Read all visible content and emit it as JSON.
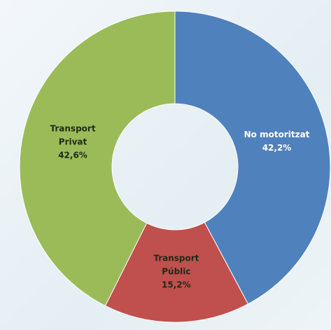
{
  "chart_data": {
    "type": "donut",
    "categories": [
      "No motoritzat",
      "Transport Públic",
      "Transport Privat"
    ],
    "values": [
      42.2,
      15.2,
      42.6
    ],
    "value_labels": [
      "42,2%",
      "15,2%",
      "42,6%"
    ],
    "colors": [
      "#4f81bd",
      "#c0504d",
      "#9bbb59"
    ]
  }
}
